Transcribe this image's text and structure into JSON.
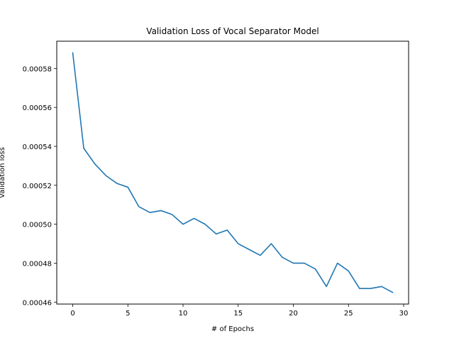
{
  "chart_data": {
    "type": "line",
    "title": "Validation Loss of Vocal Separator Model",
    "xlabel": "# of Epochs",
    "ylabel": "Validation loss",
    "xlim": [
      -1.45,
      30.45
    ],
    "ylim": [
      0.000459,
      0.000594
    ],
    "grid": false,
    "xticks": [
      0,
      5,
      10,
      15,
      20,
      25,
      30
    ],
    "xtick_labels": [
      "0",
      "5",
      "10",
      "15",
      "20",
      "25",
      "30"
    ],
    "yticks": [
      0.00046,
      0.00048,
      0.0005,
      0.00052,
      0.00054,
      0.00056,
      0.00058
    ],
    "ytick_labels": [
      "0.00046",
      "0.00048",
      "0.00050",
      "0.00052",
      "0.00054",
      "0.00056",
      "0.00058"
    ],
    "series": [
      {
        "color": "#1f77b4",
        "x": [
          0,
          1,
          2,
          3,
          4,
          5,
          6,
          7,
          8,
          9,
          10,
          11,
          12,
          13,
          14,
          15,
          16,
          17,
          18,
          19,
          20,
          21,
          22,
          23,
          24,
          25,
          26,
          27,
          28,
          29
        ],
        "values": [
          0.000588,
          0.000539,
          0.000531,
          0.000525,
          0.000521,
          0.000519,
          0.000509,
          0.000506,
          0.000507,
          0.000505,
          0.0005,
          0.000503,
          0.0005,
          0.000495,
          0.000497,
          0.00049,
          0.000487,
          0.000484,
          0.00049,
          0.000483,
          0.00048,
          0.00048,
          0.000477,
          0.000468,
          0.00048,
          0.000476,
          0.000467,
          0.000467,
          0.000468,
          0.000465
        ]
      }
    ]
  }
}
